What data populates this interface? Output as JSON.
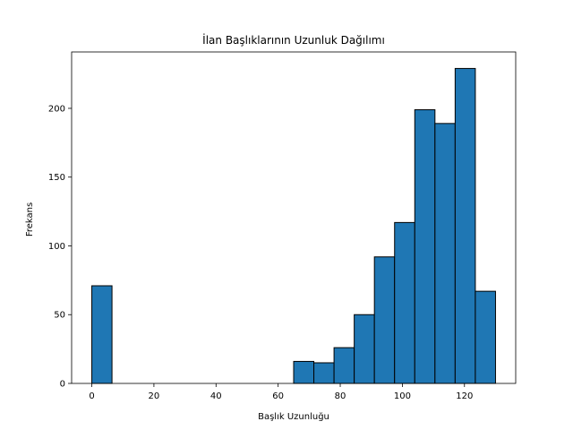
{
  "chart_data": {
    "type": "bar",
    "subtype": "histogram",
    "title": "İlan Başlıklarının Uzunluk Dağılımı",
    "xlabel": "Başlık Uzunluğu",
    "ylabel": "Frekans",
    "bar_color": "#1f77b4",
    "edge_color": "#000000",
    "xlim": [
      -6.5,
      136.5
    ],
    "ylim": [
      0,
      241
    ],
    "xticks": [
      0,
      20,
      40,
      60,
      80,
      100,
      120
    ],
    "yticks": [
      0,
      50,
      100,
      150,
      200
    ],
    "grid": false,
    "bins": [
      {
        "start": 0.0,
        "end": 6.5,
        "count": 71
      },
      {
        "start": 6.5,
        "end": 13.0,
        "count": 0
      },
      {
        "start": 13.0,
        "end": 19.5,
        "count": 0
      },
      {
        "start": 19.5,
        "end": 26.0,
        "count": 0
      },
      {
        "start": 26.0,
        "end": 32.5,
        "count": 0
      },
      {
        "start": 32.5,
        "end": 39.0,
        "count": 0
      },
      {
        "start": 39.0,
        "end": 45.5,
        "count": 0
      },
      {
        "start": 45.5,
        "end": 52.0,
        "count": 0
      },
      {
        "start": 52.0,
        "end": 58.5,
        "count": 0
      },
      {
        "start": 58.5,
        "end": 65.0,
        "count": 0
      },
      {
        "start": 65.0,
        "end": 71.5,
        "count": 16
      },
      {
        "start": 71.5,
        "end": 78.0,
        "count": 15
      },
      {
        "start": 78.0,
        "end": 84.5,
        "count": 26
      },
      {
        "start": 84.5,
        "end": 91.0,
        "count": 50
      },
      {
        "start": 91.0,
        "end": 97.5,
        "count": 92
      },
      {
        "start": 97.5,
        "end": 104.0,
        "count": 117
      },
      {
        "start": 104.0,
        "end": 110.5,
        "count": 199
      },
      {
        "start": 110.5,
        "end": 117.0,
        "count": 189
      },
      {
        "start": 117.0,
        "end": 123.5,
        "count": 229
      },
      {
        "start": 123.5,
        "end": 130.0,
        "count": 67
      }
    ]
  }
}
